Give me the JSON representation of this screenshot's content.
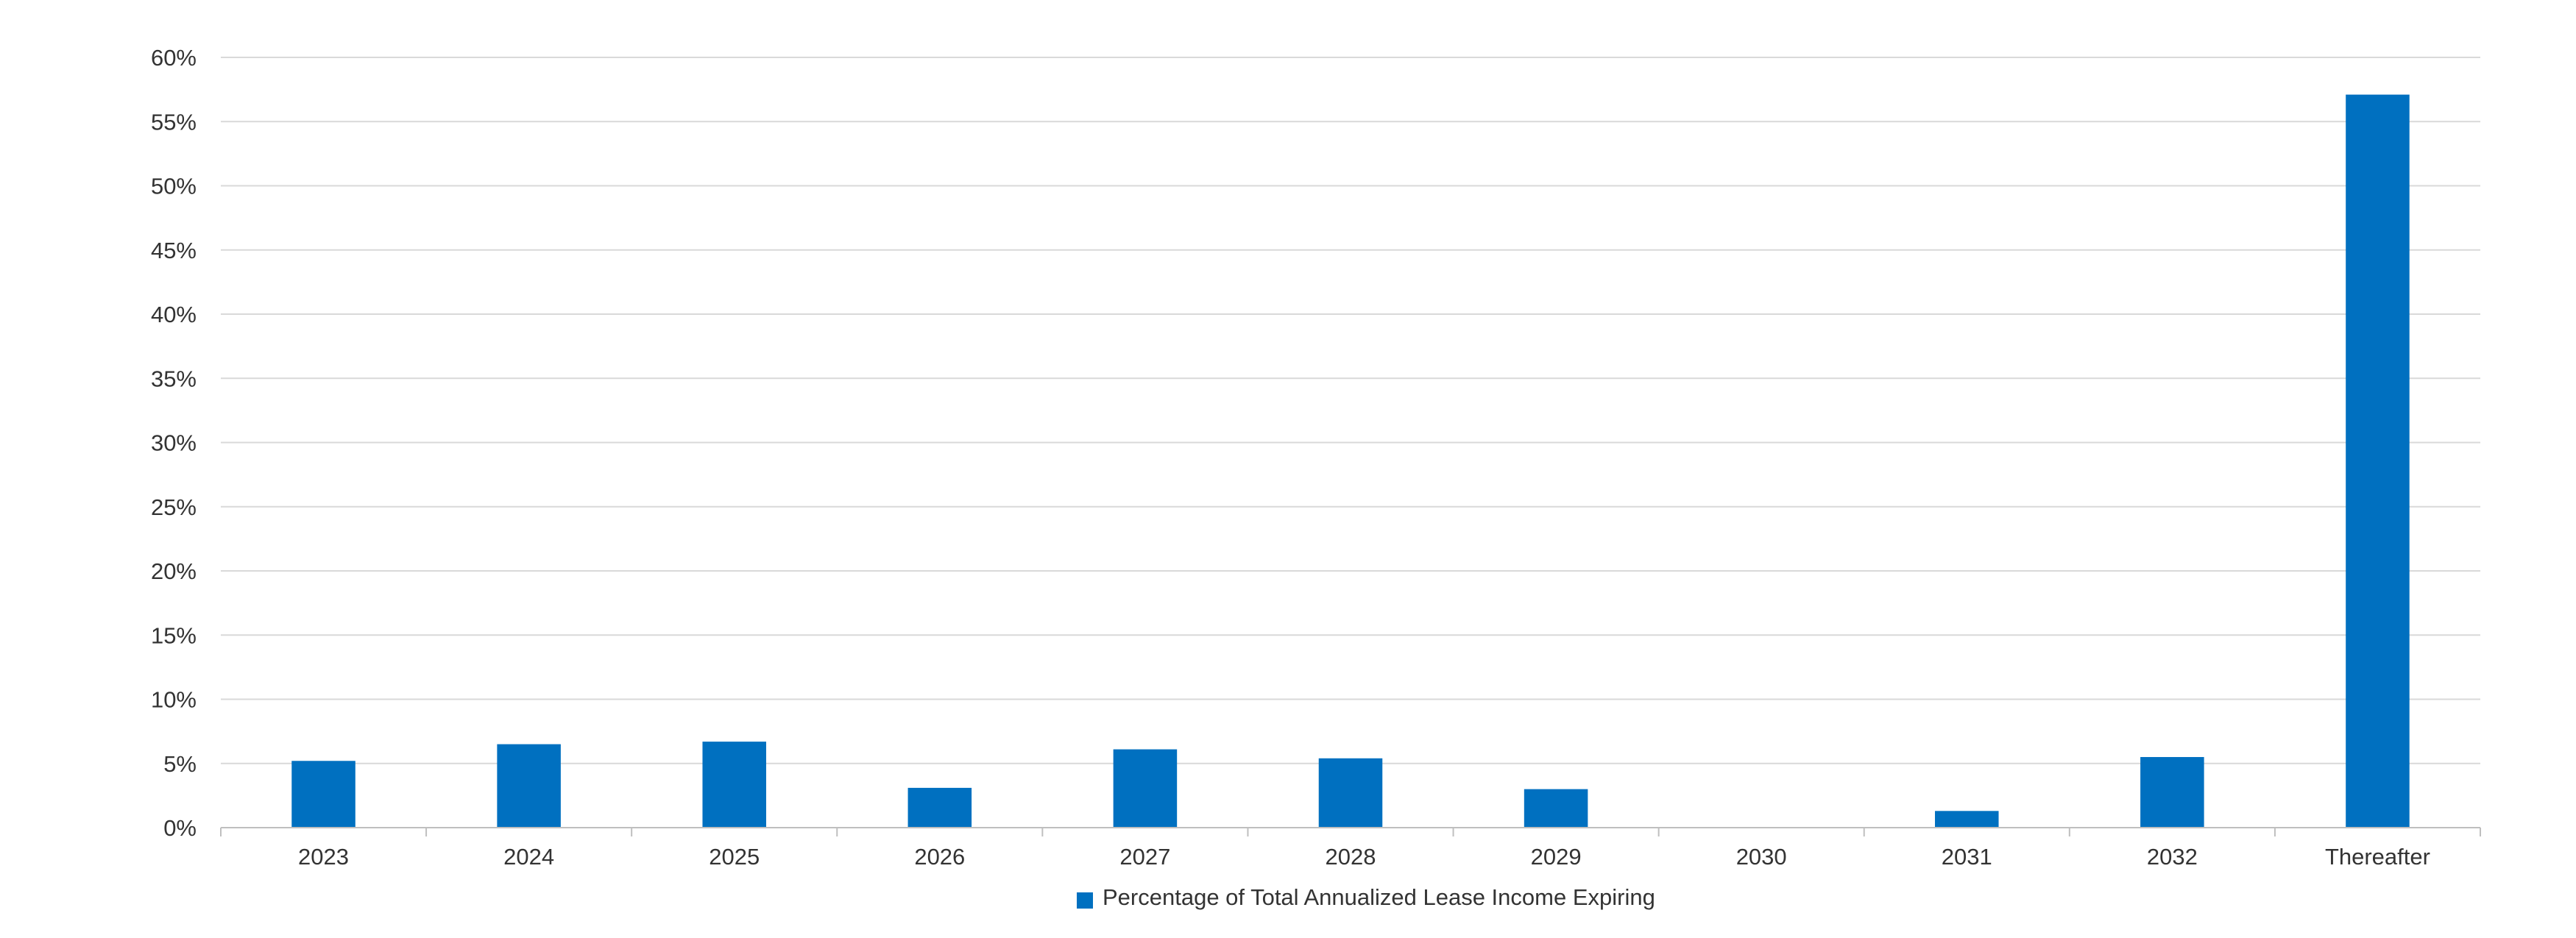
{
  "chart_data": {
    "type": "bar",
    "categories": [
      "2023",
      "2024",
      "2025",
      "2026",
      "2027",
      "2028",
      "2029",
      "2030",
      "2031",
      "2032",
      "Thereafter"
    ],
    "series": [
      {
        "name": "Percentage of Total Annualized Lease Income Expiring",
        "values": [
          5.2,
          6.5,
          6.7,
          3.1,
          6.1,
          5.4,
          3.0,
          0.0,
          1.3,
          5.5,
          57.1
        ]
      }
    ],
    "y_ticks": [
      "0%",
      "5%",
      "10%",
      "15%",
      "20%",
      "25%",
      "30%",
      "35%",
      "40%",
      "45%",
      "50%",
      "55%",
      "60%"
    ],
    "ylim": [
      0,
      60
    ],
    "grid": true,
    "legend_position": "bottom",
    "bar_color": "#0070C0",
    "title": "",
    "xlabel": "",
    "ylabel": ""
  }
}
